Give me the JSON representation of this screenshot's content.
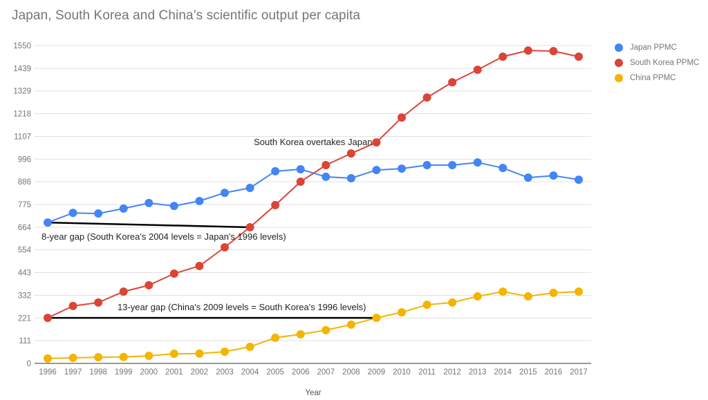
{
  "chart_data": {
    "type": "line",
    "title": "Japan, South Korea and China’s scientific output per capita",
    "xlabel": "Year",
    "ylabel": "",
    "x": [
      "1996",
      "1997",
      "1998",
      "1999",
      "2000",
      "2001",
      "2002",
      "2003",
      "2004",
      "2005",
      "2006",
      "2007",
      "2008",
      "2009",
      "2010",
      "2011",
      "2012",
      "2013",
      "2014",
      "2015",
      "2016",
      "2017"
    ],
    "ylim": [
      0,
      1550
    ],
    "yticks": [
      "0",
      "111",
      "221",
      "332",
      "443",
      "554",
      "664",
      "775",
      "886",
      "996",
      "1107",
      "1218",
      "1329",
      "1439",
      "1550"
    ],
    "ytick_values": [
      0,
      111,
      221,
      332,
      443,
      554,
      664,
      775,
      886,
      996,
      1107,
      1218,
      1329,
      1439,
      1550
    ],
    "grid": true,
    "legend_position": "right",
    "series": [
      {
        "name": "Japan PPMC",
        "color": "#4285F4",
        "values": [
          687,
          734,
          731,
          755,
          782,
          768,
          792,
          832,
          856,
          937,
          947,
          910,
          903,
          943,
          950,
          967,
          967,
          980,
          953,
          906,
          916,
          896
        ]
      },
      {
        "name": "South Korea PPMC",
        "color": "#DB4437",
        "values": [
          222,
          280,
          297,
          350,
          381,
          438,
          475,
          566,
          664,
          772,
          886,
          967,
          1024,
          1078,
          1199,
          1297,
          1371,
          1432,
          1496,
          1526,
          1523,
          1496
        ]
      },
      {
        "name": "China PPMC",
        "color": "#F4B400",
        "values": [
          24,
          27,
          30,
          31,
          37,
          47,
          48,
          57,
          81,
          125,
          142,
          162,
          189,
          222,
          249,
          286,
          297,
          327,
          350,
          327,
          344,
          350
        ]
      }
    ],
    "annotations": [
      {
        "text": "South Korea overtakes Japan",
        "anchor_year": "2009",
        "anchor_series": "South Korea PPMC"
      },
      {
        "text": "8-year gap (South Korea's 2004 levels = Japan's 1996 levels)",
        "line_from": {
          "year": "1996",
          "value": 687
        },
        "line_to": {
          "year": "2004",
          "value": 664
        }
      },
      {
        "text": "13-year gap (China's 2009 levels = South Korea's 1996 levels)",
        "line_from": {
          "year": "1996",
          "value": 222
        },
        "line_to": {
          "year": "2009",
          "value": 222
        }
      }
    ]
  }
}
